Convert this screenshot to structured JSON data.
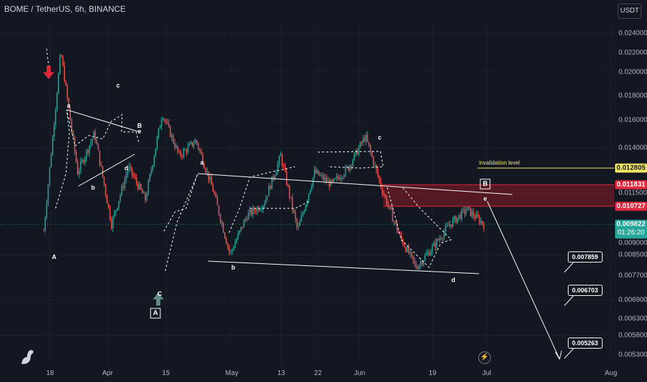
{
  "header": {
    "title": "BOME / TetherUS, 6h, BINANCE",
    "currency": "USDT"
  },
  "y_axis_ticks": [
    "0.024000",
    "0.022000",
    "0.020000",
    "0.018000",
    "0.016000",
    "0.014000",
    "0.011500",
    "0.009000",
    "0.008500",
    "0.007700",
    "0.006900",
    "0.006300",
    "0.005800",
    "0.005300"
  ],
  "x_axis_ticks": [
    "18",
    "Apr",
    "15",
    "May",
    "13",
    "22",
    "Jun",
    "19",
    "Jul",
    "Aug"
  ],
  "price_tags": {
    "invalidation": "0.012805",
    "zone_top": "0.011831",
    "zone_bottom": "0.010727",
    "current_price": "0.009822",
    "countdown": "01:26:20"
  },
  "targets": [
    "0.007859",
    "0.006703",
    "0.005263"
  ],
  "annotations": {
    "invalidation_label": "invalidation level",
    "waves": [
      "A",
      "a",
      "b",
      "c",
      "d",
      "B",
      "e",
      "C",
      "a",
      "b",
      "c",
      "d",
      "e"
    ],
    "boxed_waves": [
      "A",
      "B"
    ]
  },
  "colors": {
    "background": "#131722",
    "candle_up": "#26a69a",
    "candle_down": "#ef5350",
    "invalidation": "#f5e663",
    "resistance_zone": "#e0283c",
    "annotation": "#ffffff"
  },
  "icons": [
    "arrow-down-red-icon",
    "arrow-up-green-icon",
    "bolt-icon",
    "tradingview-logo-icon"
  ],
  "chart_data": {
    "type": "candlestick",
    "title": "BOME / TetherUS, 6h, BINANCE",
    "y_scale": "log",
    "x_dates": [
      "Mar 18",
      "Apr",
      "Apr 15",
      "May",
      "May 13",
      "May 22",
      "Jun",
      "Jun 19",
      "Jul",
      "Aug"
    ],
    "levels": {
      "invalidation": 0.012805,
      "zone_top": 0.011831,
      "zone_bottom": 0.010727,
      "current": 0.009822
    },
    "targets": [
      0.007859,
      0.006703,
      0.005263
    ],
    "approx_path": [
      0.0095,
      0.022,
      0.0125,
      0.015,
      0.0098,
      0.0128,
      0.011,
      0.0165,
      0.0135,
      0.0145,
      0.0115,
      0.0085,
      0.0102,
      0.0108,
      0.0135,
      0.0095,
      0.0125,
      0.0118,
      0.0128,
      0.0148,
      0.0115,
      0.0093,
      0.008,
      0.0088,
      0.0098,
      0.0105,
      0.0098
    ]
  }
}
